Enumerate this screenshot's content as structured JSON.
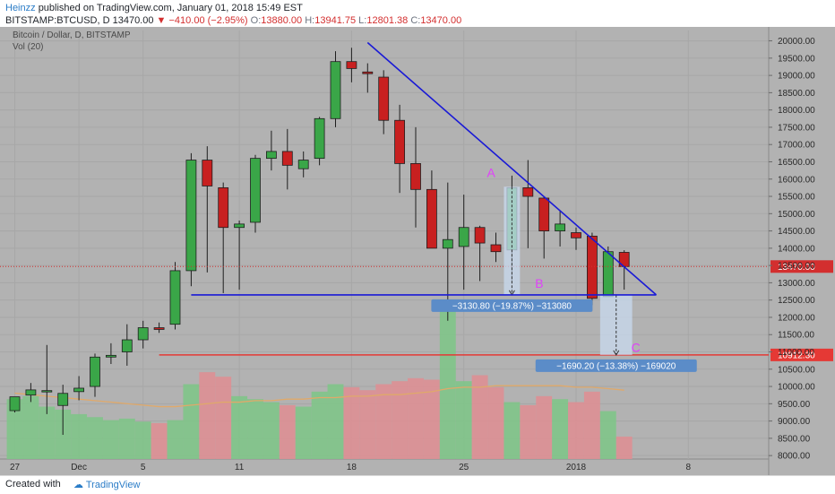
{
  "header": {
    "author": "Heinzz",
    "published_text": "published on TradingView.com, January 01, 2018 15:49 EST",
    "symbol_line": "BITSTAMP:BTCUSD, D",
    "last_price": "13470.00",
    "change": "−410.00 (−2.95%)",
    "o_label": "O:",
    "o_value": "13880.00",
    "h_label": "H:",
    "h_value": "13941.75",
    "l_label": "L:",
    "l_value": "12801.38",
    "c_label": "C:",
    "c_value": "13470.00"
  },
  "legend": {
    "series_title": "Bitcoin / Dollar, D, BITSTAMP",
    "volume_title": "Vol (20)"
  },
  "footer": {
    "created_with": "Created with",
    "brand": "TradingView"
  },
  "colors": {
    "background": "#b2b2b2",
    "up": "#3aa648",
    "down": "#c82020",
    "vol_up": "#7fc488",
    "vol_down": "#dd8f93",
    "trendline": "#1a1ad6",
    "support_red": "#e53935",
    "label_blue": "#5b8cc8",
    "pink": "#e040fb"
  },
  "chart_data": {
    "type": "candlestick",
    "y_range": [
      7900,
      20300
    ],
    "y_ticks": [
      "20000.00",
      "19500.00",
      "19000.00",
      "18500.00",
      "18000.00",
      "17500.00",
      "17000.00",
      "16500.00",
      "16000.00",
      "15500.00",
      "15000.00",
      "14500.00",
      "14000.00",
      "13500.00",
      "13000.00",
      "12500.00",
      "12000.00",
      "11500.00",
      "11000.00",
      "10500.00",
      "10000.00",
      "9500.00",
      "9000.00",
      "8500.00",
      "8000.00"
    ],
    "x_ticks": [
      {
        "label": "27",
        "index": 0
      },
      {
        "label": "Dec",
        "index": 4
      },
      {
        "label": "5",
        "index": 8
      },
      {
        "label": "11",
        "index": 14
      },
      {
        "label": "18",
        "index": 21
      },
      {
        "label": "25",
        "index": 28
      },
      {
        "label": "2018",
        "index": 35
      },
      {
        "label": "8",
        "index": 42
      }
    ],
    "candles": [
      {
        "o": 9300,
        "h": 9650,
        "l": 9250,
        "c": 9700
      },
      {
        "o": 9750,
        "h": 10100,
        "l": 9550,
        "c": 9900
      },
      {
        "o": 9850,
        "h": 11200,
        "l": 9200,
        "c": 9880
      },
      {
        "o": 9450,
        "h": 10050,
        "l": 8600,
        "c": 9800
      },
      {
        "o": 9850,
        "h": 10300,
        "l": 9600,
        "c": 9950
      },
      {
        "o": 10000,
        "h": 10950,
        "l": 9700,
        "c": 10850
      },
      {
        "o": 10850,
        "h": 11250,
        "l": 10650,
        "c": 10900
      },
      {
        "o": 11000,
        "h": 11800,
        "l": 10600,
        "c": 11350
      },
      {
        "o": 11350,
        "h": 11900,
        "l": 11100,
        "c": 11700
      },
      {
        "o": 11700,
        "h": 11850,
        "l": 11550,
        "c": 11650
      },
      {
        "o": 11800,
        "h": 13600,
        "l": 11650,
        "c": 13350
      },
      {
        "o": 13350,
        "h": 16750,
        "l": 12900,
        "c": 16550
      },
      {
        "o": 16550,
        "h": 16950,
        "l": 13300,
        "c": 15800
      },
      {
        "o": 15750,
        "h": 15900,
        "l": 12700,
        "c": 14600
      },
      {
        "o": 14600,
        "h": 14800,
        "l": 12800,
        "c": 14700
      },
      {
        "o": 14750,
        "h": 16700,
        "l": 14450,
        "c": 16600
      },
      {
        "o": 16600,
        "h": 17400,
        "l": 16250,
        "c": 16800
      },
      {
        "o": 16800,
        "h": 17450,
        "l": 15700,
        "c": 16400
      },
      {
        "o": 16300,
        "h": 16800,
        "l": 16050,
        "c": 16550
      },
      {
        "o": 16600,
        "h": 17800,
        "l": 16400,
        "c": 17750
      },
      {
        "o": 17750,
        "h": 19700,
        "l": 17500,
        "c": 19400
      },
      {
        "o": 19400,
        "h": 19800,
        "l": 18800,
        "c": 19200
      },
      {
        "o": 19100,
        "h": 19350,
        "l": 18500,
        "c": 19050
      },
      {
        "o": 18950,
        "h": 19150,
        "l": 17300,
        "c": 17700
      },
      {
        "o": 17700,
        "h": 18150,
        "l": 15600,
        "c": 16450
      },
      {
        "o": 16450,
        "h": 17500,
        "l": 14600,
        "c": 15700
      },
      {
        "o": 15700,
        "h": 16250,
        "l": 14100,
        "c": 14000
      },
      {
        "o": 14000,
        "h": 15900,
        "l": 11900,
        "c": 14250
      },
      {
        "o": 14050,
        "h": 15550,
        "l": 12800,
        "c": 14600
      },
      {
        "o": 14600,
        "h": 14650,
        "l": 13050,
        "c": 14150
      },
      {
        "o": 14100,
        "h": 14450,
        "l": 13600,
        "c": 13900
      },
      {
        "o": 13950,
        "h": 16100,
        "l": 13000,
        "c": 15750
      },
      {
        "o": 15750,
        "h": 16550,
        "l": 14000,
        "c": 15500
      },
      {
        "o": 15450,
        "h": 15500,
        "l": 13700,
        "c": 14500
      },
      {
        "o": 14500,
        "h": 15100,
        "l": 14050,
        "c": 14700
      },
      {
        "o": 14450,
        "h": 14600,
        "l": 13950,
        "c": 14300
      },
      {
        "o": 14350,
        "h": 14450,
        "l": 12350,
        "c": 12550
      },
      {
        "o": 12600,
        "h": 14050,
        "l": 12600,
        "c": 13900
      },
      {
        "o": 13880,
        "h": 13941.75,
        "l": 12801.38,
        "c": 13470
      }
    ],
    "volume": {
      "vol_range": [
        0,
        1.0
      ],
      "values": [
        0.4,
        0.42,
        0.35,
        0.33,
        0.3,
        0.28,
        0.26,
        0.27,
        0.25,
        0.24,
        0.26,
        0.5,
        0.58,
        0.55,
        0.42,
        0.4,
        0.38,
        0.36,
        0.35,
        0.45,
        0.5,
        0.48,
        0.46,
        0.5,
        0.52,
        0.54,
        0.53,
        1.0,
        0.52,
        0.56,
        0.48,
        0.38,
        0.36,
        0.42,
        0.4,
        0.38,
        0.45,
        0.32,
        0.15
      ],
      "ma": [
        0.44,
        0.43,
        0.42,
        0.41,
        0.4,
        0.39,
        0.38,
        0.37,
        0.36,
        0.35,
        0.35,
        0.36,
        0.37,
        0.38,
        0.38,
        0.39,
        0.39,
        0.4,
        0.4,
        0.41,
        0.41,
        0.42,
        0.42,
        0.43,
        0.43,
        0.44,
        0.45,
        0.47,
        0.48,
        0.48,
        0.49,
        0.49,
        0.49,
        0.49,
        0.49,
        0.48,
        0.48,
        0.47,
        0.46
      ]
    },
    "annotations": {
      "trendline": {
        "from": {
          "index": 22,
          "price": 19950
        },
        "to": {
          "index": 40,
          "price": 12650
        }
      },
      "support_line": {
        "from_index": 11,
        "to_index": 40,
        "price": 12650
      },
      "red_line": {
        "from_index": 9,
        "price": 10912.3,
        "label": "10912.30"
      },
      "price_line": {
        "price": 13470,
        "label": "13470.00"
      },
      "point_a": {
        "label": "A",
        "index": 30,
        "price": 15900
      },
      "point_b": {
        "label": "B",
        "index": 33,
        "price": 12700
      },
      "point_c": {
        "label": "C",
        "index": 39,
        "price": 10850
      },
      "measure1": {
        "from": {
          "index": 30.5,
          "price": 15780
        },
        "to": {
          "index": 31.5,
          "price": 12650
        },
        "label": "−3130.80 (−19.87%) −313080"
      },
      "measure2": {
        "from": {
          "index": 36.5,
          "price": 12650
        },
        "to": {
          "index": 38.5,
          "price": 10912.3
        },
        "label": "−1690.20 (−13.38%) −169020"
      }
    }
  }
}
